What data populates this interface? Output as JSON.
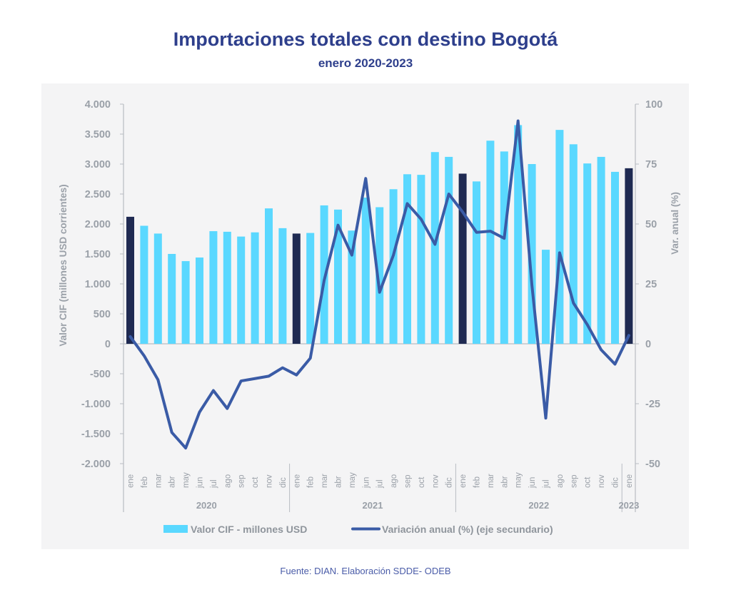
{
  "header": {
    "title": "Importaciones totales con destino Bogotá",
    "subtitle": "enero 2020-2023"
  },
  "footer": {
    "source": "Fuente: DIAN. Elaboración SDDE- ODEB"
  },
  "chart_data": {
    "type": "bar",
    "title": "Importaciones totales con destino Bogotá",
    "subtitle": "enero 2020-2023",
    "ylabel": "Valor CIF (millones USD corrientes)",
    "y2label": "Var. anual (%)",
    "ylim": [
      -2000,
      4000
    ],
    "y2lim": [
      -50,
      100
    ],
    "yticks": [
      "4.000",
      "3.500",
      "3.000",
      "2.500",
      "2.000",
      "1.500",
      "1.000",
      "500",
      "0",
      "-500",
      "-1.000",
      "-1.500",
      "-2.000"
    ],
    "yticks_values": [
      4000,
      3500,
      3000,
      2500,
      2000,
      1500,
      1000,
      500,
      0,
      -500,
      -1000,
      -1500,
      -2000
    ],
    "y2ticks": [
      "100",
      "75",
      "50",
      "25",
      "0",
      "-25",
      "-50"
    ],
    "y2ticks_values": [
      100,
      75,
      50,
      25,
      0,
      -25,
      -50
    ],
    "grid": false,
    "legend_position": "bottom",
    "categories": [
      "ene",
      "feb",
      "mar",
      "abr",
      "may",
      "jun",
      "jul",
      "ago",
      "sep",
      "oct",
      "nov",
      "dic",
      "ene",
      "feb",
      "mar",
      "abr",
      "may",
      "jun",
      "jul",
      "ago",
      "sep",
      "oct",
      "nov",
      "dic",
      "ene",
      "feb",
      "mar",
      "abr",
      "may",
      "jun",
      "jul",
      "ago",
      "sep",
      "oct",
      "nov",
      "dic",
      "ene"
    ],
    "year_groups": [
      {
        "label": "2020",
        "count": 12
      },
      {
        "label": "2021",
        "count": 12
      },
      {
        "label": "2022",
        "count": 12
      },
      {
        "label": "2023",
        "count": 1
      }
    ],
    "highlight_january": true,
    "colors": {
      "bar": "#5ad8ff",
      "bar_january": "#1f2a52",
      "line": "#3a5ba6"
    },
    "series": [
      {
        "name": "Valor CIF - millones USD",
        "type": "bar",
        "axis": "primary",
        "values": [
          2120,
          1970,
          1840,
          1500,
          1380,
          1440,
          1880,
          1870,
          1790,
          1860,
          2260,
          1930,
          1840,
          1850,
          2310,
          2240,
          1890,
          2440,
          2280,
          2580,
          2830,
          2820,
          3200,
          3120,
          2840,
          2710,
          3390,
          3210,
          3650,
          3000,
          1570,
          3570,
          3330,
          3010,
          3120,
          2870,
          2930
        ]
      },
      {
        "name": "Variación anual (%) (eje secundario)",
        "type": "line",
        "axis": "secondary",
        "values": [
          3,
          -5,
          -15,
          -37,
          -43.5,
          -28.5,
          -19.5,
          -27,
          -15.5,
          -14.5,
          -13.5,
          -10,
          -13,
          -6,
          26.5,
          49.5,
          37,
          69,
          21.5,
          37,
          58.5,
          52,
          41.5,
          62.5,
          55,
          46.5,
          47,
          44,
          93,
          24.5,
          -31,
          38,
          17,
          8,
          -2.5,
          -8.5,
          3.5
        ]
      }
    ]
  }
}
